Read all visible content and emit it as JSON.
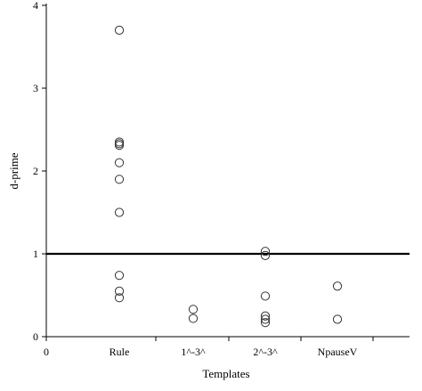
{
  "chart_data": {
    "type": "scatter",
    "title": "",
    "xlabel": "Templates",
    "ylabel": "d-prime",
    "categories": [
      "Rule",
      "1^-3^",
      "2^-3^",
      "NpauseV"
    ],
    "x_origin_label": "0",
    "ylim": [
      0,
      4
    ],
    "y_ticks": [
      0,
      1,
      2,
      3,
      4
    ],
    "grid": false,
    "reference_line": {
      "y": 1.0,
      "color": "#000000"
    },
    "marker": "open-circle",
    "series": [
      {
        "points": [
          {
            "category": "Rule",
            "y": 3.7
          },
          {
            "category": "Rule",
            "y": 2.35
          },
          {
            "category": "Rule",
            "y": 2.33
          },
          {
            "category": "Rule",
            "y": 2.31
          },
          {
            "category": "Rule",
            "y": 2.1
          },
          {
            "category": "Rule",
            "y": 1.9
          },
          {
            "category": "Rule",
            "y": 1.5
          },
          {
            "category": "Rule",
            "y": 0.74
          },
          {
            "category": "Rule",
            "y": 0.55
          },
          {
            "category": "Rule",
            "y": 0.47
          },
          {
            "category": "1^-3^",
            "y": 0.33
          },
          {
            "category": "1^-3^",
            "y": 0.22
          },
          {
            "category": "2^-3^",
            "y": 1.03
          },
          {
            "category": "2^-3^",
            "y": 0.98
          },
          {
            "category": "2^-3^",
            "y": 0.49
          },
          {
            "category": "2^-3^",
            "y": 0.25
          },
          {
            "category": "2^-3^",
            "y": 0.21
          },
          {
            "category": "2^-3^",
            "y": 0.17
          },
          {
            "category": "NpauseV",
            "y": 0.61
          },
          {
            "category": "NpauseV",
            "y": 0.21
          }
        ]
      }
    ]
  }
}
